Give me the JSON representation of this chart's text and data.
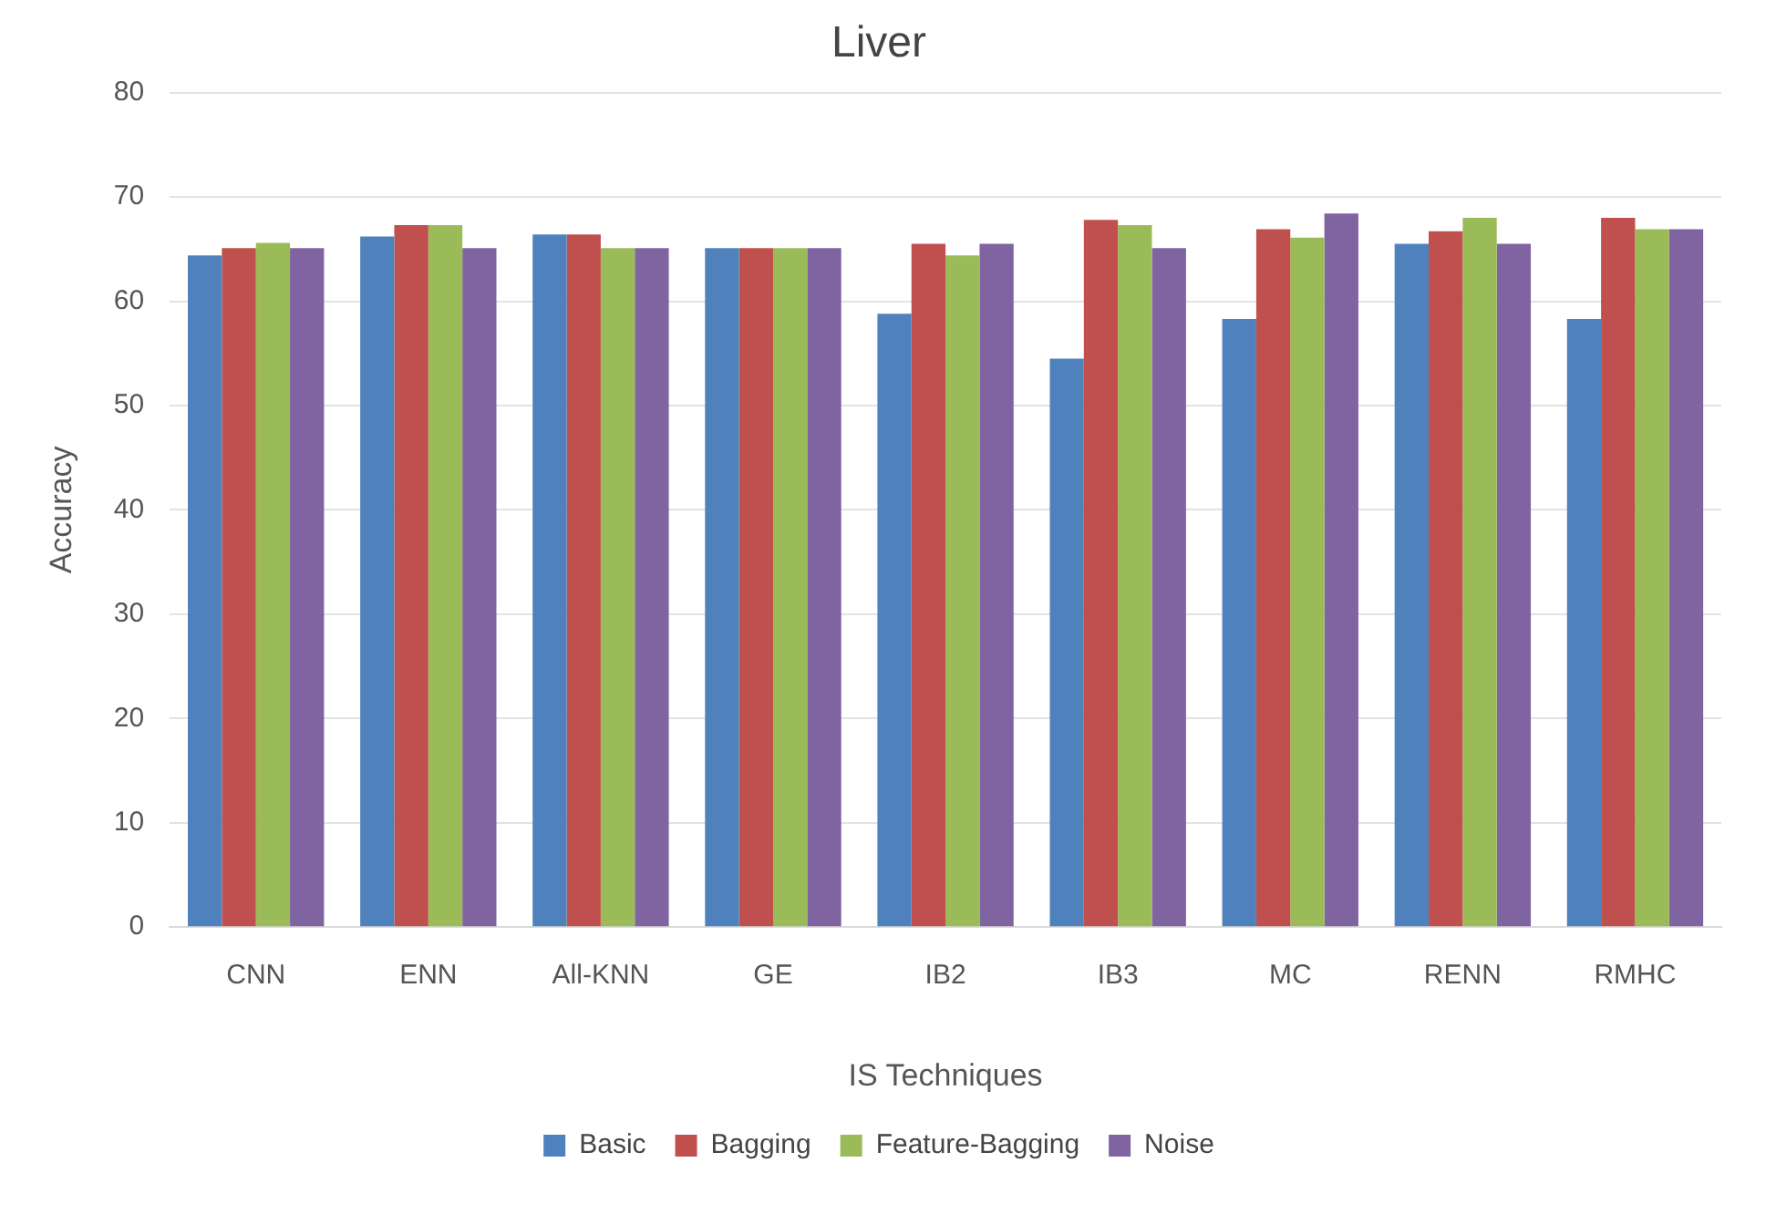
{
  "chart_data": {
    "type": "bar",
    "title": "Liver",
    "xlabel": "IS Techniques",
    "ylabel": "Accuracy",
    "categories": [
      "CNN",
      "ENN",
      "All-KNN",
      "GE",
      "IB2",
      "IB3",
      "MC",
      "RENN",
      "RMHC"
    ],
    "series": [
      {
        "name": "Basic",
        "color": "#4f81bd",
        "values": [
          64.4,
          66.2,
          66.4,
          65.1,
          58.8,
          54.5,
          58.3,
          65.5,
          58.3
        ]
      },
      {
        "name": "Bagging",
        "color": "#c0504d",
        "values": [
          65.1,
          67.3,
          66.4,
          65.1,
          65.5,
          67.8,
          66.9,
          66.7,
          68.0
        ]
      },
      {
        "name": "Feature-Bagging",
        "color": "#9bbb59",
        "values": [
          65.6,
          67.3,
          65.1,
          65.1,
          64.4,
          67.3,
          66.1,
          68.0,
          66.9
        ]
      },
      {
        "name": "Noise",
        "color": "#8064a2",
        "values": [
          65.1,
          65.1,
          65.1,
          65.1,
          65.5,
          65.1,
          68.4,
          65.5,
          66.9
        ]
      }
    ],
    "ylim": [
      0,
      80
    ],
    "yticks": [
      0,
      10,
      20,
      30,
      40,
      50,
      60,
      70,
      80
    ],
    "grid": "y",
    "legend": "bottom"
  }
}
